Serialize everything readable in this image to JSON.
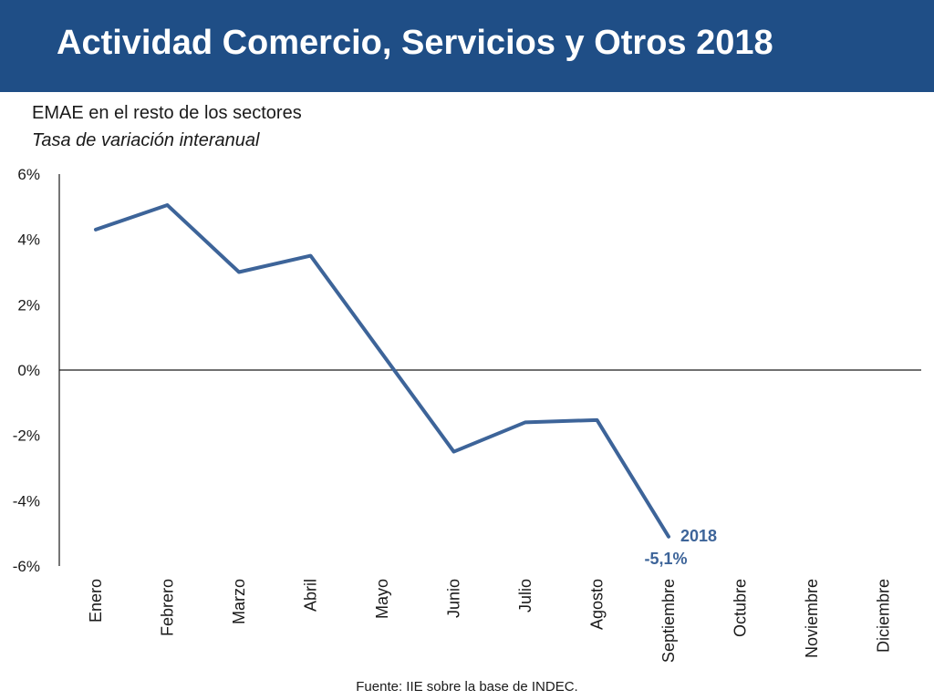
{
  "header": {
    "title": "Actividad Comercio, Servicios y Otros 2018"
  },
  "colors": {
    "header_bg": "#1f4e86",
    "series": "#3d6499",
    "axis": "#1a1a1a"
  },
  "chart_data": {
    "type": "line",
    "title": "EMAE en el resto de los sectores",
    "subtitle": "Tasa de variación interanual",
    "categories": [
      "Enero",
      "Febrero",
      "Marzo",
      "Abril",
      "Mayo",
      "Junio",
      "Julio",
      "Agosto",
      "Septiembre",
      "Octubre",
      "Noviembre",
      "Diciembre"
    ],
    "series": [
      {
        "name": "2018",
        "values": [
          4.3,
          5.05,
          3.0,
          3.5,
          0.5,
          -2.5,
          -1.6,
          -1.53,
          -5.1,
          null,
          null,
          null
        ]
      }
    ],
    "y_ticks": [
      "6%",
      "4%",
      "2%",
      "0%",
      "-2%",
      "-4%",
      "-6%"
    ],
    "ylim": [
      -6,
      6
    ],
    "data_labels": [
      {
        "category": "Septiembre",
        "text": "-5,1%"
      }
    ],
    "series_label": {
      "text": "2018",
      "category": "Septiembre"
    },
    "grid": false,
    "legend": "none"
  },
  "footer": {
    "source": "Fuente: IIE sobre la base de INDEC."
  }
}
